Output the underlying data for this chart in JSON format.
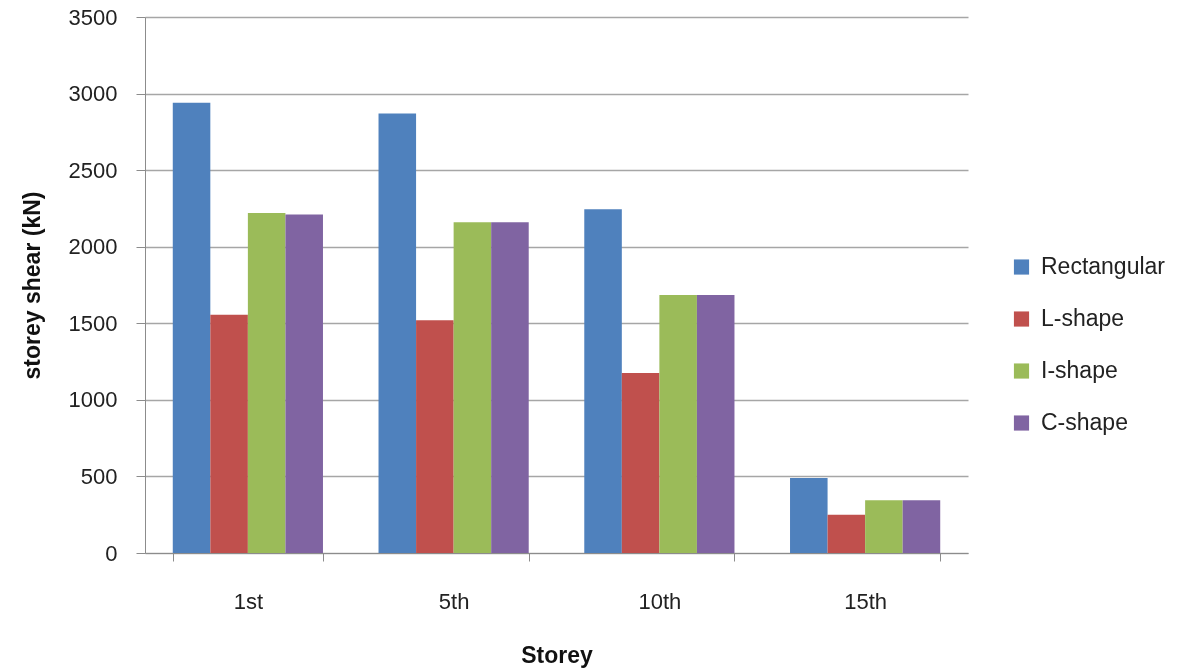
{
  "chart_data": {
    "type": "bar",
    "xlabel": "Storey",
    "ylabel": "storey shear (kN)",
    "categories": [
      "1st",
      "5th",
      "10th",
      "15th"
    ],
    "series": [
      {
        "name": "Rectangular",
        "color": "#4f81bd",
        "values": [
          2940,
          2870,
          2245,
          490
        ]
      },
      {
        "name": "L-shape",
        "color": "#c0504d",
        "values": [
          1555,
          1520,
          1175,
          250
        ]
      },
      {
        "name": "I-shape",
        "color": "#9bbb59",
        "values": [
          2220,
          2160,
          1685,
          345
        ]
      },
      {
        "name": "C-shape",
        "color": "#8064a2",
        "values": [
          2210,
          2160,
          1685,
          345
        ]
      }
    ],
    "ylim": [
      0,
      3500
    ],
    "yticks": [
      0,
      500,
      1000,
      1500,
      2000,
      2500,
      3000,
      3500
    ],
    "grid": "y",
    "legend": "right"
  }
}
